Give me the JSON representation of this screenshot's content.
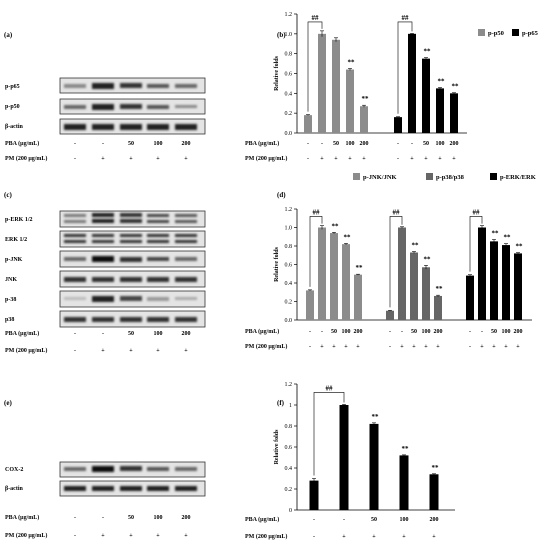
{
  "panel_labels": [
    "(a)",
    "(b)",
    "(c)",
    "(d)",
    "(e)",
    "(f)"
  ],
  "treatments": {
    "pba_label": "PBA (μg/mL)",
    "pm_label": "PM (200 μg/mL)",
    "pba": [
      "-",
      "-",
      "50",
      "100",
      "200"
    ],
    "pm": [
      "-",
      "+",
      "+",
      "+",
      "+"
    ]
  },
  "blot_labels": {
    "a": [
      "p-p65",
      "p-p50",
      "β-actin"
    ],
    "c": [
      "p-ERK 1/2",
      "ERK 1/2",
      "p-JNK",
      "JNK",
      "p-38",
      "p38"
    ],
    "e": [
      "COX-2",
      "β-actin"
    ]
  },
  "colors": {
    "gray": "#8c8c8c",
    "dark": "#666666",
    "black": "#000000"
  },
  "chart_data": [
    {
      "type": "bar",
      "panel": "(b)",
      "ylabel": "Relative folds",
      "ylim": [
        0,
        1.2
      ],
      "yticks": [
        "0.0",
        "0.2",
        "0.4",
        "0.6",
        "0.8",
        "1.0",
        "1.2"
      ],
      "categories": [
        "-",
        "-",
        "50",
        "100",
        "200"
      ],
      "legend_position": "top-right",
      "series": [
        {
          "name": "p-p50",
          "color": "gray",
          "values": [
            0.18,
            1.0,
            0.94,
            0.64,
            0.27
          ],
          "errors": [
            0.005,
            0.03,
            0.02,
            0.01,
            0.01
          ],
          "significance": [
            "",
            "",
            "",
            "**",
            "**"
          ]
        },
        {
          "name": "p-p65",
          "color": "black",
          "values": [
            0.16,
            1.0,
            0.75,
            0.45,
            0.4
          ],
          "errors": [
            0.004,
            0.004,
            0.01,
            0.008,
            0.006
          ],
          "significance": [
            "",
            "",
            "**",
            "**",
            "**"
          ]
        }
      ],
      "brackets": [
        "##",
        "##"
      ]
    },
    {
      "type": "bar",
      "panel": "(d)",
      "ylabel": "Relative folds",
      "ylim": [
        0,
        1.2
      ],
      "yticks": [
        "0.0",
        "0.2",
        "0.4",
        "0.6",
        "0.8",
        "1.0",
        "1.2"
      ],
      "categories": [
        "-",
        "-",
        "50",
        "100",
        "200"
      ],
      "legend_position": "top",
      "series": [
        {
          "name": "p-JNK/JNK",
          "color": "gray",
          "values": [
            0.32,
            1.0,
            0.94,
            0.82,
            0.49
          ],
          "errors": [
            0.006,
            0.02,
            0.008,
            0.008,
            0.005
          ],
          "significance": [
            "",
            "",
            "**",
            "**",
            "**"
          ]
        },
        {
          "name": "p-p38/p38",
          "color": "dark",
          "values": [
            0.1,
            1.0,
            0.73,
            0.57,
            0.26
          ],
          "errors": [
            0.004,
            0.008,
            0.01,
            0.02,
            0.008
          ],
          "significance": [
            "",
            "",
            "**",
            "**",
            "**"
          ]
        },
        {
          "name": "p-ERK/ERK",
          "color": "black",
          "values": [
            0.48,
            1.0,
            0.85,
            0.81,
            0.72
          ],
          "errors": [
            0.01,
            0.02,
            0.02,
            0.015,
            0.008
          ],
          "significance": [
            "",
            "",
            "**",
            "**",
            "**"
          ]
        }
      ],
      "brackets": [
        "##",
        "##",
        "##"
      ]
    },
    {
      "type": "bar",
      "panel": "(f)",
      "ylabel": "Relative folds",
      "ylim": [
        0,
        1.2
      ],
      "yticks": [
        "0",
        "0.2",
        "0.4",
        "0.6",
        "0.8",
        "1",
        "1.2"
      ],
      "categories": [
        "-",
        "-",
        "50",
        "100",
        "200"
      ],
      "series": [
        {
          "name": "",
          "color": "black",
          "values": [
            0.28,
            1.0,
            0.82,
            0.52,
            0.34
          ],
          "errors": [
            0.02,
            0.005,
            0.01,
            0.005,
            0.005
          ],
          "significance": [
            "",
            "",
            "**",
            "**",
            "**"
          ]
        }
      ],
      "brackets": [
        "##"
      ]
    }
  ]
}
